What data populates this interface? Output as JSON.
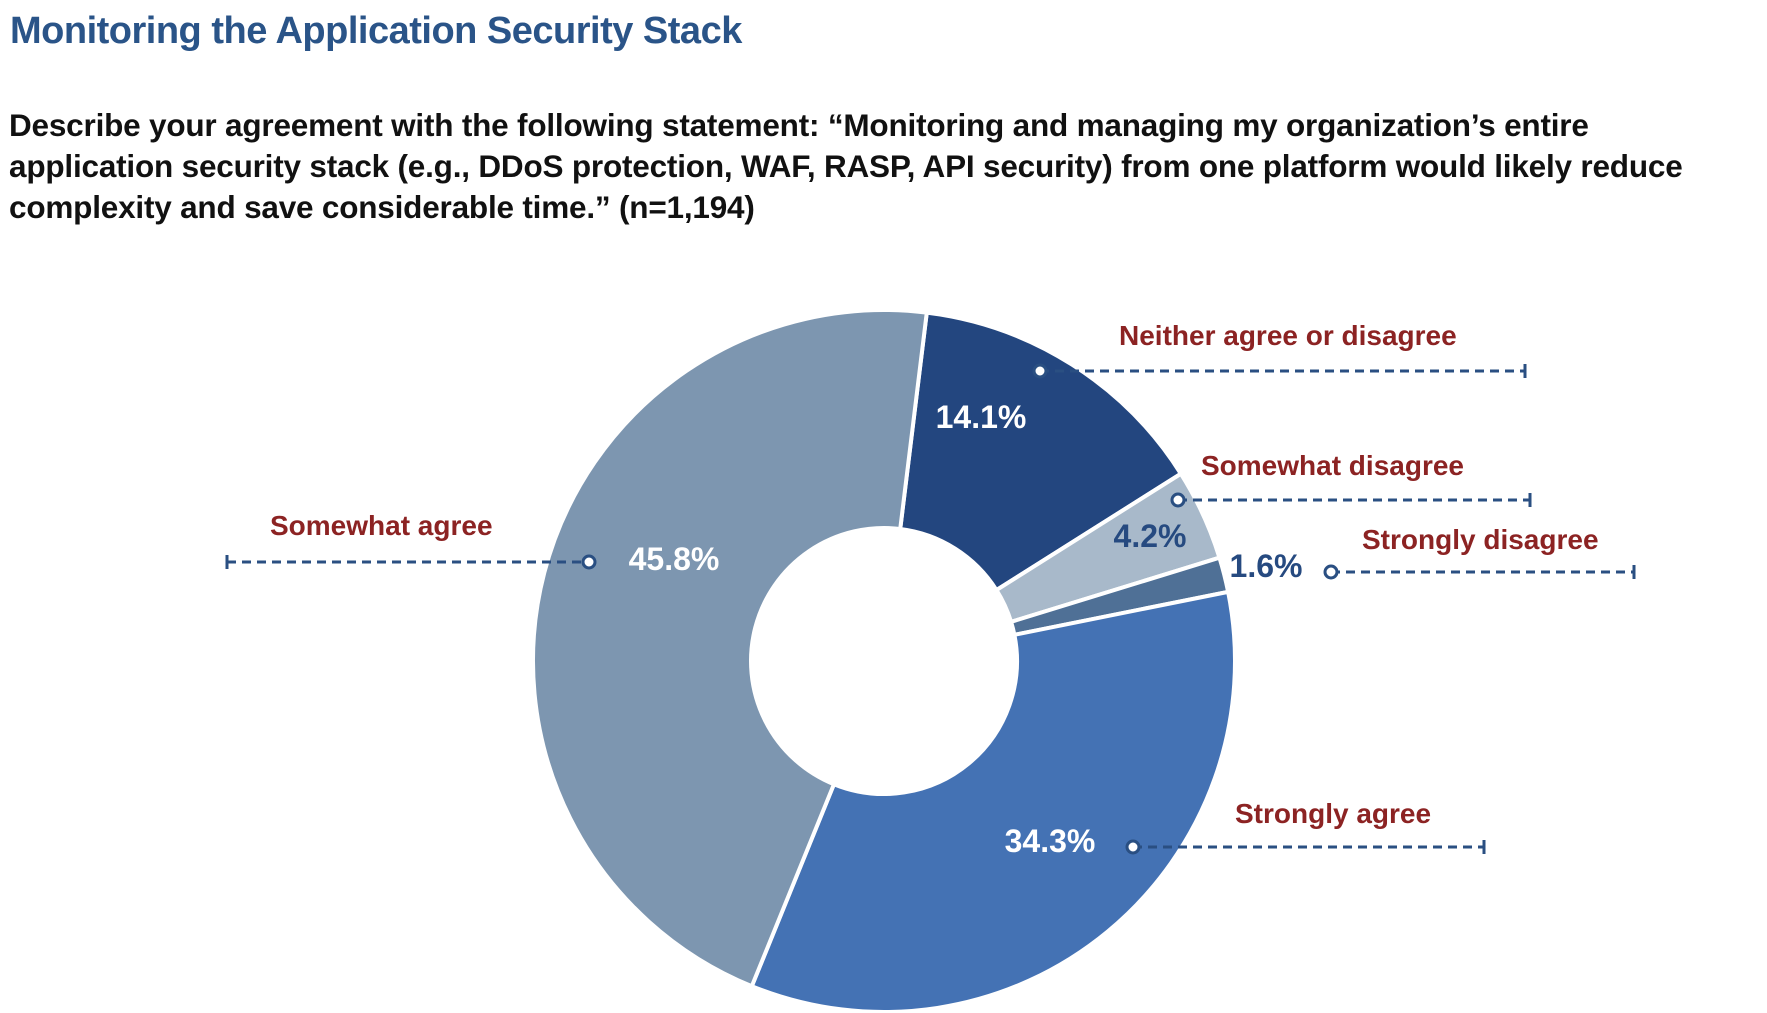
{
  "title": "Monitoring the Application Security Stack",
  "question": "Describe your agreement with the following statement: “Monitoring and managing my organization’s entire application security stack (e.g., DDoS protection, WAF, RASP, API security) from one platform would likely reduce complexity and save considerable time.” (n=1,194)",
  "chart_data": {
    "type": "pie",
    "variant": "donut",
    "title": "Monitoring the Application Security Stack",
    "n": 1194,
    "slices": [
      {
        "label": "Neither agree or disagree",
        "value": 14.1,
        "display": "14.1%",
        "color": "#23467f",
        "pct_color": "#ffffff"
      },
      {
        "label": "Somewhat disagree",
        "value": 4.2,
        "display": "4.2%",
        "color": "#a8b9ca",
        "pct_color": "#264a80"
      },
      {
        "label": "Strongly disagree",
        "value": 1.6,
        "display": "1.6%",
        "color": "#4f7096",
        "pct_color": "#264a80"
      },
      {
        "label": "Strongly agree",
        "value": 34.3,
        "display": "34.3%",
        "color": "#4472b4",
        "pct_color": "#ffffff"
      },
      {
        "label": "Somewhat agree",
        "value": 45.8,
        "display": "45.8%",
        "color": "#7d96b0",
        "pct_color": "#ffffff"
      }
    ],
    "label_color": "#8c2323",
    "leader_color": "#2a4f82"
  }
}
